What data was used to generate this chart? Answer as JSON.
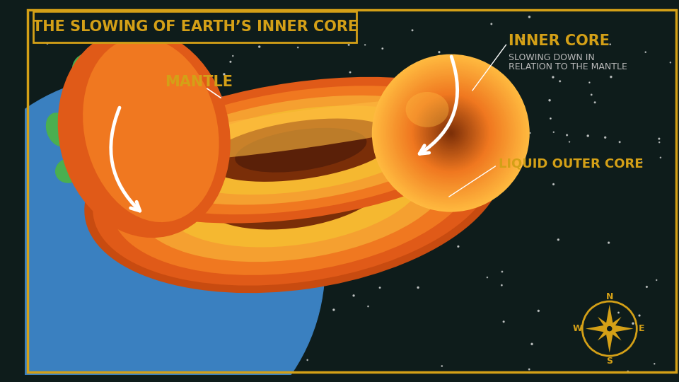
{
  "title": "THE SLOWING OF EARTH’S INNER CORE",
  "bg_color": "#0e1c1b",
  "gold_color": "#d4a017",
  "orange_outer_edge": "#c84b10",
  "orange_outer": "#e05a18",
  "orange_mid": "#f07820",
  "orange_bright": "#f5a030",
  "orange_gold": "#f5b830",
  "orange_inner_core": "#e86818",
  "orange_highlight": "#ffba40",
  "dark_core": "#7a2e08",
  "darker_core": "#5a2008",
  "earth_blue": "#3a80c0",
  "earth_green": "#4aaf50",
  "white": "#ffffff",
  "label_mantle": "MANTLE",
  "label_inner_core": "INNER CORE",
  "label_inner_core_sub": "SLOWING DOWN IN\nRELATION TO THE MANTLE",
  "label_liquid_outer_core": "LIQUID OUTER CORE",
  "star_count": 150
}
